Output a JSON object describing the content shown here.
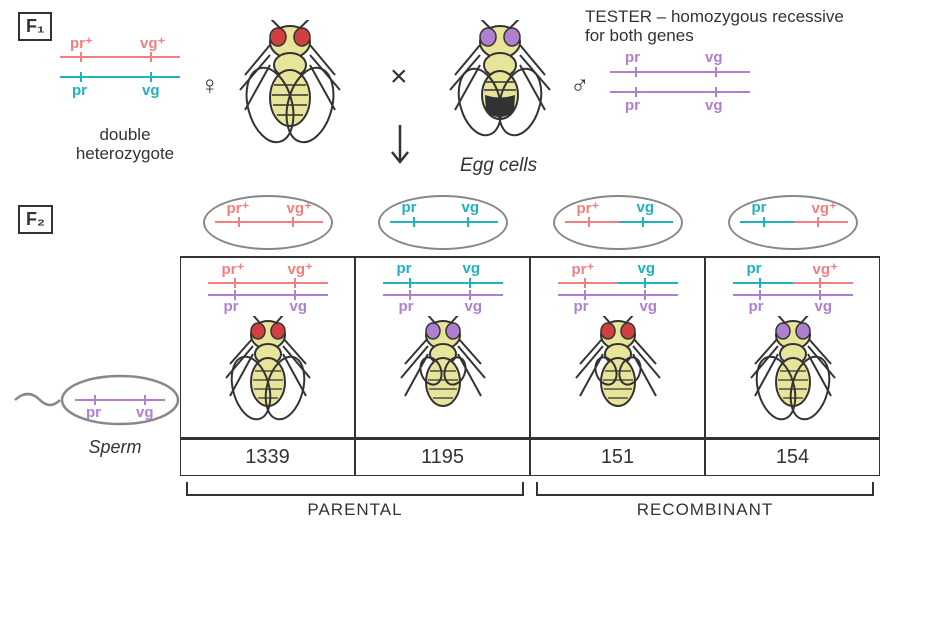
{
  "labels": {
    "f1": "F₁",
    "f2": "F₂",
    "tester": "TESTER – homozygous recessive for both genes",
    "double_het": "double heterozygote",
    "egg_cells": "Egg cells",
    "sperm": "Sperm",
    "parental": "PARENTAL",
    "recombinant": "RECOMBINANT",
    "cross": "×"
  },
  "alleles": {
    "pr_plus": "pr⁺",
    "vg_plus": "vg⁺",
    "pr": "pr",
    "vg": "vg"
  },
  "colors": {
    "pink": "#f08080",
    "teal": "#20b2c0",
    "purple": "#b080d0",
    "black": "#333333",
    "grey": "#888888",
    "fly_body": "#e8e49a",
    "fly_eye_red": "#d04040",
    "fly_eye_purple": "#b080d0"
  },
  "f1": {
    "female_top_allele1": "pr⁺",
    "female_top_allele2": "vg⁺",
    "female_bot_allele1": "pr",
    "female_bot_allele2": "vg",
    "male_top_allele1": "pr",
    "male_top_allele2": "vg",
    "male_bot_allele1": "pr",
    "male_bot_allele2": "vg"
  },
  "eggs": [
    {
      "a1": "pr⁺",
      "a2": "vg⁺",
      "c1": "#f08080",
      "c2": "#f08080"
    },
    {
      "a1": "pr",
      "a2": "vg",
      "c1": "#20b2c0",
      "c2": "#20b2c0"
    },
    {
      "a1": "pr⁺",
      "a2": "vg",
      "c1": "#f08080",
      "c2": "#20b2c0"
    },
    {
      "a1": "pr",
      "a2": "vg⁺",
      "c1": "#20b2c0",
      "c2": "#f08080"
    }
  ],
  "offspring": [
    {
      "top_a1": "pr⁺",
      "top_a2": "vg⁺",
      "top_c1": "#f08080",
      "top_c2": "#f08080",
      "eye": "#d04040",
      "wing": "long",
      "count": "1339"
    },
    {
      "top_a1": "pr",
      "top_a2": "vg",
      "top_c1": "#20b2c0",
      "top_c2": "#20b2c0",
      "eye": "#b080d0",
      "wing": "short",
      "count": "1195"
    },
    {
      "top_a1": "pr⁺",
      "top_a2": "vg",
      "top_c1": "#f08080",
      "top_c2": "#20b2c0",
      "eye": "#d04040",
      "wing": "short",
      "count": "151"
    },
    {
      "top_a1": "pr",
      "top_a2": "vg⁺",
      "top_c1": "#20b2c0",
      "top_c2": "#f08080",
      "eye": "#b080d0",
      "wing": "long",
      "count": "154"
    }
  ],
  "sperm": {
    "a1": "pr",
    "a2": "vg",
    "color": "#b080d0"
  }
}
